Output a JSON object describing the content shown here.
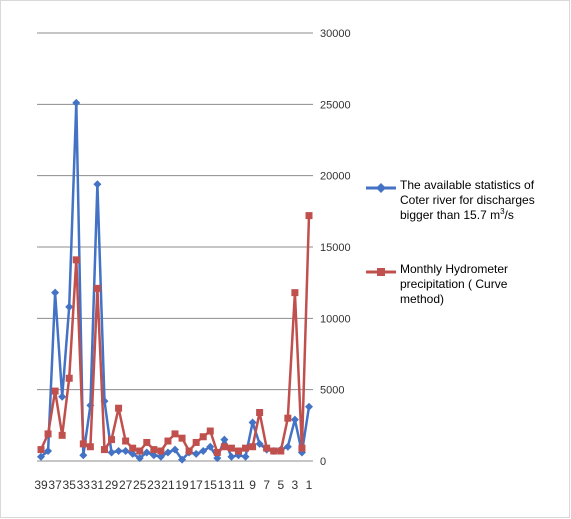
{
  "chart_data": {
    "type": "line",
    "title": "",
    "xlabel": "",
    "ylabel": "",
    "y_axis_position": "right",
    "ylim": [
      0,
      30000
    ],
    "y_ticks": [
      0,
      5000,
      10000,
      15000,
      20000,
      25000,
      30000
    ],
    "x_reversed": true,
    "x_tick_labels": [
      "39",
      "37",
      "35",
      "33",
      "31",
      "29",
      "27",
      "25",
      "23",
      "21",
      "19",
      "17",
      "15",
      "13",
      "11",
      "9",
      "7",
      "5",
      "3",
      "1"
    ],
    "grid": "horizontal",
    "legend_position": "right",
    "x": [
      39,
      38,
      37,
      36,
      35,
      34,
      33,
      32,
      31,
      30,
      29,
      28,
      27,
      26,
      25,
      24,
      23,
      22,
      21,
      20,
      19,
      18,
      17,
      16,
      15,
      14,
      13,
      12,
      11,
      10,
      9,
      8,
      7,
      6,
      5,
      4,
      3,
      2,
      1
    ],
    "series": [
      {
        "name": "The available statistics of Coter river for discharges bigger than 15.7 m3/s",
        "color": "#4472C4",
        "marker": "diamond",
        "values": [
          300,
          700,
          11800,
          4500,
          10800,
          25100,
          400,
          3900,
          19400,
          4200,
          600,
          700,
          700,
          500,
          200,
          600,
          400,
          300,
          600,
          800,
          100,
          600,
          500,
          700,
          1000,
          200,
          1500,
          300,
          400,
          300,
          2700,
          1200,
          800,
          700,
          800,
          1000,
          2900,
          600,
          3800
        ]
      },
      {
        "name": "Monthly Hydrometer precipitation ( Curve method)",
        "color": "#C0504D",
        "marker": "square",
        "values": [
          800,
          1900,
          4900,
          1800,
          5800,
          14100,
          1200,
          1000,
          12100,
          800,
          1500,
          3700,
          1400,
          900,
          700,
          1300,
          800,
          700,
          1400,
          1900,
          1600,
          700,
          1300,
          1700,
          2100,
          600,
          1000,
          900,
          700,
          900,
          1000,
          3400,
          900,
          700,
          700,
          3000,
          11800,
          900,
          17200
        ]
      }
    ]
  },
  "legend": {
    "item1_text": "The available statistics of Coter river for discharges bigger than 15.7 m",
    "item1_sup": "3",
    "item1_tail": "/s",
    "item2_text": "Monthly Hydrometer precipitation ( Curve method)"
  }
}
